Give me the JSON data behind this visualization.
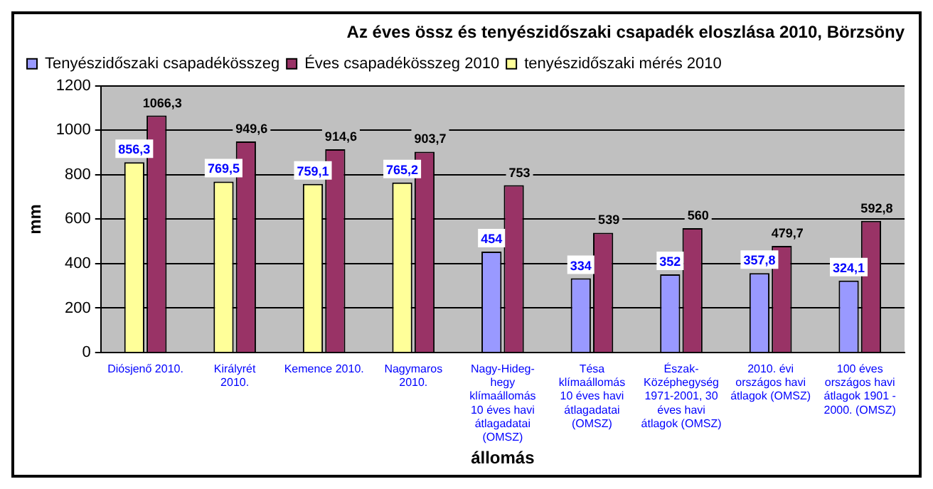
{
  "chart_data": {
    "type": "bar",
    "title": "Az éves össz és tenyészidőszaki csapadék eloszlása 2010, Börzsöny",
    "xlabel": "állomás",
    "ylabel": "mm",
    "categories": [
      "Diósjenő 2010.",
      "Királyrét 2010.",
      "Kemence 2010.",
      "Nagymaros 2010.",
      "Nagy-Hideg-hegy klímaállomás 10 éves havi átlagadatai (OMSZ)",
      "Tésa klímaállomás 10 éves havi átlagadatai (OMSZ)",
      "Észak-Középhegység 1971-2001, 30 éves havi átlagok (OMSZ)",
      "2010. évi országos havi átlagok (OMSZ)",
      "100 éves országos havi átlagok 1901 - 2000. (OMSZ)"
    ],
    "series": [
      {
        "name": "Tenyészidőszaki csapadékösszeg",
        "color": "#9999ff",
        "values": [
          null,
          null,
          null,
          null,
          454,
          334,
          352,
          357.8,
          324.1
        ],
        "value_labels": [
          null,
          null,
          null,
          null,
          "454",
          "334",
          "352",
          "357,8",
          "324,1"
        ]
      },
      {
        "name": "Éves csapadékösszeg 2010",
        "color": "#993366",
        "values": [
          1066.3,
          949.6,
          914.6,
          903.7,
          753,
          539,
          560,
          479.7,
          592.8
        ],
        "value_labels": [
          "1066,3",
          "949,6",
          "914,6",
          "903,7",
          "753",
          "539",
          "560",
          "479,7",
          "592,8"
        ]
      },
      {
        "name": "tenyészidőszaki mérés 2010",
        "color": "#ffff99",
        "values": [
          856.3,
          769.5,
          759.1,
          765.2,
          null,
          null,
          null,
          null,
          null
        ],
        "value_labels": [
          "856,3",
          "769,5",
          "759,1",
          "765,2",
          null,
          null,
          null,
          null,
          null
        ]
      }
    ],
    "ylim": [
      0,
      1200
    ],
    "yticks": [
      0,
      200,
      400,
      600,
      800,
      1000,
      1200
    ],
    "grid": "y",
    "legend": "top left"
  }
}
